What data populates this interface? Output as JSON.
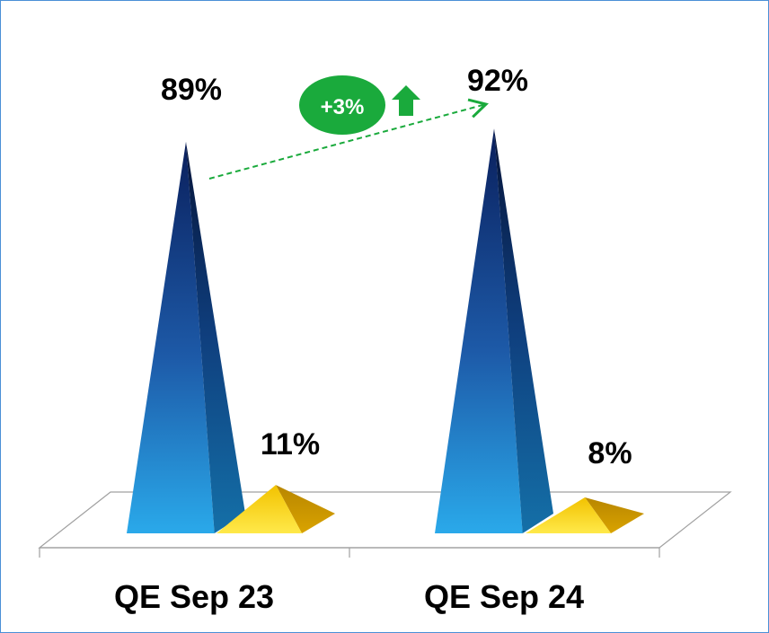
{
  "chart_data": {
    "type": "bar",
    "style": "3d-pyramid",
    "categories": [
      "QE Sep 23",
      "QE Sep 24"
    ],
    "series": [
      {
        "values": [
          89,
          92
        ],
        "color": "#1b4f9e"
      },
      {
        "values": [
          11,
          8
        ],
        "color": "#f2c200"
      }
    ],
    "data_labels": [
      [
        "89%",
        "92%"
      ],
      [
        "11%",
        "8%"
      ]
    ],
    "annotation": {
      "text": "+3%",
      "color": "#1aaa3c",
      "direction": "up"
    },
    "ylim": [
      0,
      100
    ],
    "grid": false,
    "legend": "none"
  },
  "colors": {
    "frame_border": "#4a8fd6",
    "accent_green": "#1aaa3c",
    "floor_stroke": "#a0a0a0"
  }
}
